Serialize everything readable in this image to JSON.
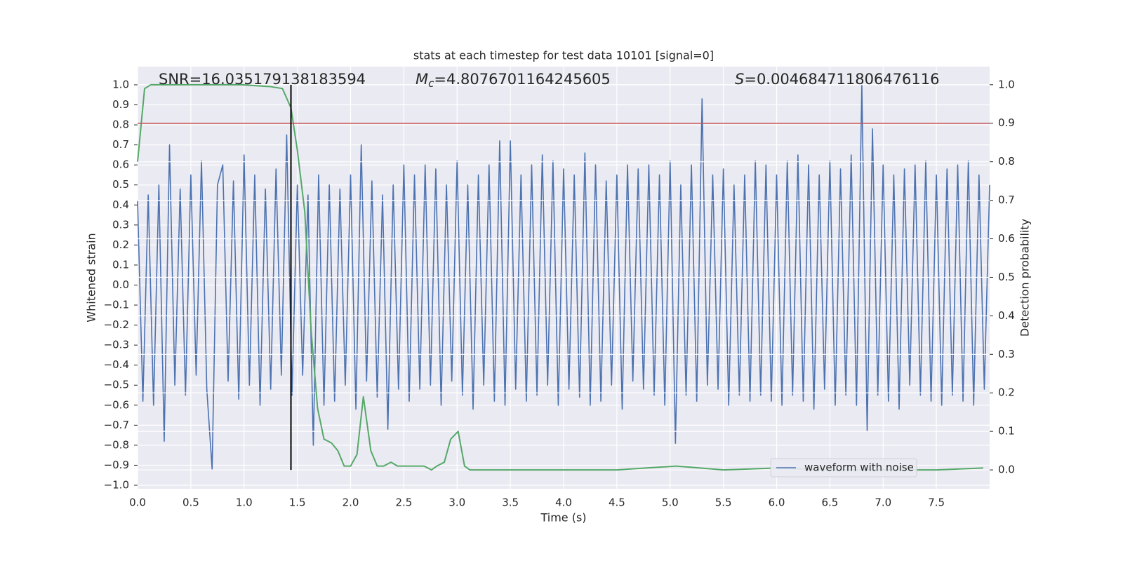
{
  "chart_data": {
    "type": "line",
    "title": "stats at each timestep for test data 10101 [signal=0]",
    "xlabel": "Time (s)",
    "ylabel": "Whitened strain",
    "y2label": "Detection probability",
    "xlim": [
      0,
      8.0
    ],
    "ylim": [
      -1.0175,
      1.091
    ],
    "y2lim": [
      -0.049,
      1.047
    ],
    "xticks": [
      {
        "value": 0,
        "label": "0.0"
      },
      0.5,
      {
        "value": 1,
        "label": "1.0"
      },
      1.5,
      {
        "value": 2,
        "label": "2.0"
      },
      2.5,
      {
        "value": 3,
        "label": "3.0"
      },
      3.5,
      {
        "value": 4,
        "label": "4.0"
      },
      4.5,
      {
        "value": 5,
        "label": "5.0"
      },
      5.5,
      {
        "value": 6,
        "label": "6.0"
      },
      6.5,
      {
        "value": 7,
        "label": "7.0"
      },
      7.5
    ],
    "yticks": [
      {
        "value": 1,
        "label": "1.0"
      },
      0.9,
      0.8,
      0.7,
      0.6,
      0.5,
      0.4,
      0.3,
      0.2,
      0.1,
      {
        "value": 0,
        "label": "0.0"
      },
      {
        "value": -0.1,
        "label": "−0.1"
      },
      {
        "value": -0.2,
        "label": "−0.2"
      },
      {
        "value": -0.3,
        "label": "−0.3"
      },
      {
        "value": -0.4,
        "label": "−0.4"
      },
      {
        "value": -0.5,
        "label": "−0.5"
      },
      {
        "value": -0.6,
        "label": "−0.6"
      },
      {
        "value": -0.7,
        "label": "−0.7"
      },
      {
        "value": -0.8,
        "label": "−0.8"
      },
      {
        "value": -0.9,
        "label": "−0.9"
      },
      {
        "value": -1,
        "label": "−1.0"
      }
    ],
    "y2ticks": [
      {
        "value": 0,
        "label": "0.0"
      },
      0.1,
      0.2,
      0.3,
      0.4,
      0.5,
      0.6,
      0.7,
      0.8,
      0.9,
      {
        "value": 1,
        "label": "1.0"
      }
    ],
    "grid": true,
    "legend_position": "lower right",
    "annotations": [
      {
        "symbol": "SNR",
        "text": "=16.035179138183594",
        "italic": false
      },
      {
        "symbol": "M",
        "subscript": "c",
        "text": "=4.8076701164245605",
        "italic": true
      },
      {
        "symbol": "S",
        "text": "=0.004684711806476116",
        "italic": true
      }
    ],
    "threshold": {
      "value": 0.9,
      "axis": "y2",
      "color": "#c44e52"
    },
    "marker_x": {
      "value": 1.44,
      "color": "#000000"
    },
    "series": [
      {
        "name": "waveform with noise",
        "color": "#4c72b0",
        "x": [
          0,
          0.05,
          0.1,
          0.15,
          0.2,
          0.25,
          0.3,
          0.35,
          0.4,
          0.45,
          0.5,
          0.55,
          0.6,
          0.65,
          0.7,
          0.75,
          0.8,
          0.85,
          0.9,
          0.95,
          1,
          1.05,
          1.1,
          1.15,
          1.2,
          1.25,
          1.3,
          1.35,
          1.4,
          1.45,
          1.5,
          1.55,
          1.6,
          1.65,
          1.7,
          1.75,
          1.8,
          1.85,
          1.9,
          1.95,
          2,
          2.05,
          2.1,
          2.15,
          2.2,
          2.25,
          2.3,
          2.35,
          2.4,
          2.45,
          2.5,
          2.55,
          2.6,
          2.65,
          2.7,
          2.75,
          2.8,
          2.85,
          2.9,
          2.95,
          3,
          3.05,
          3.1,
          3.15,
          3.2,
          3.25,
          3.3,
          3.35,
          3.4,
          3.45,
          3.5,
          3.55,
          3.6,
          3.65,
          3.7,
          3.75,
          3.8,
          3.85,
          3.9,
          3.95,
          4,
          4.05,
          4.1,
          4.15,
          4.2,
          4.25,
          4.3,
          4.35,
          4.4,
          4.45,
          4.5,
          4.55,
          4.6,
          4.65,
          4.7,
          4.75,
          4.8,
          4.85,
          4.9,
          4.95,
          5,
          5.05,
          5.1,
          5.15,
          5.2,
          5.25,
          5.3,
          5.35,
          5.4,
          5.45,
          5.5,
          5.55,
          5.6,
          5.65,
          5.7,
          5.75,
          5.8,
          5.85,
          5.9,
          5.95,
          6,
          6.05,
          6.1,
          6.15,
          6.2,
          6.25,
          6.3,
          6.35,
          6.4,
          6.45,
          6.5,
          6.55,
          6.6,
          6.65,
          6.7,
          6.75,
          6.8,
          6.85,
          6.9,
          6.95,
          7,
          7.05,
          7.1,
          7.15,
          7.2,
          7.25,
          7.3,
          7.35,
          7.4,
          7.45,
          7.5,
          7.55,
          7.6,
          7.65,
          7.7,
          7.75,
          7.8,
          7.85,
          7.9,
          7.95,
          8
        ],
        "values": [
          0.42,
          -0.58,
          0.45,
          -0.6,
          0.5,
          -0.78,
          0.7,
          -0.5,
          0.48,
          -0.55,
          0.55,
          -0.45,
          0.62,
          -0.52,
          -0.92,
          0.5,
          0.6,
          -0.48,
          0.52,
          -0.57,
          0.65,
          -0.5,
          0.55,
          -0.6,
          0.48,
          -0.52,
          0.58,
          -0.45,
          0.75,
          -0.55,
          0.5,
          -0.45,
          0.45,
          -0.8,
          0.55,
          -0.6,
          0.5,
          -0.58,
          0.48,
          -0.5,
          0.55,
          -0.62,
          0.7,
          -0.48,
          0.52,
          -0.56,
          0.45,
          -0.72,
          0.5,
          -0.52,
          0.6,
          -0.58,
          0.55,
          -0.52,
          0.6,
          -0.5,
          0.58,
          -0.6,
          0.5,
          -0.48,
          0.62,
          -0.55,
          0.5,
          -0.62,
          0.55,
          -0.5,
          0.6,
          -0.58,
          0.72,
          -0.6,
          0.72,
          -0.52,
          0.55,
          -0.58,
          0.6,
          -0.55,
          0.65,
          -0.5,
          0.62,
          -0.6,
          0.58,
          -0.52,
          0.55,
          -0.56,
          0.66,
          -0.6,
          0.6,
          -0.58,
          0.52,
          -0.5,
          0.55,
          -0.62,
          0.6,
          -0.48,
          0.58,
          -0.52,
          0.6,
          -0.55,
          0.55,
          -0.6,
          0.62,
          -0.79,
          0.5,
          -0.55,
          0.6,
          -0.58,
          0.93,
          -0.5,
          0.55,
          -0.52,
          0.58,
          -0.6,
          0.5,
          -0.55,
          0.55,
          -0.58,
          0.62,
          -0.55,
          0.6,
          -0.58,
          0.55,
          -0.6,
          0.62,
          -0.55,
          0.65,
          -0.58,
          0.6,
          -0.62,
          0.55,
          -0.52,
          0.62,
          -0.6,
          0.58,
          -0.55,
          0.65,
          -0.6,
          1.0,
          -0.73,
          0.78,
          -0.55,
          0.6,
          -0.58,
          0.55,
          -0.62,
          0.58,
          -0.5,
          0.6,
          -0.55,
          0.62,
          -0.58,
          0.55,
          -0.6,
          0.58,
          -0.55,
          0.6,
          -0.58,
          0.62,
          -0.6,
          0.55,
          -0.52,
          0.5
        ]
      },
      {
        "axis": "y2",
        "color": "#55a868",
        "x": [
          0,
          0.066,
          0.125,
          0.98,
          1.25,
          1.36,
          1.44,
          1.5,
          1.57,
          1.63,
          1.69,
          1.75,
          1.82,
          1.88,
          1.94,
          2.0,
          2.06,
          2.12,
          2.19,
          2.25,
          2.31,
          2.38,
          2.44,
          2.5,
          2.56,
          2.63,
          2.69,
          2.76,
          2.81,
          2.88,
          2.94,
          3.01,
          3.07,
          3.12,
          3.5,
          4.0,
          4.5,
          5.06,
          5.5,
          6.0,
          6.5,
          7.0,
          7.5,
          7.94
        ],
        "values": [
          0.8,
          0.99,
          1.0,
          1.0,
          0.995,
          0.99,
          0.94,
          0.83,
          0.67,
          0.36,
          0.16,
          0.08,
          0.07,
          0.05,
          0.01,
          0.01,
          0.04,
          0.19,
          0.05,
          0.01,
          0.01,
          0.02,
          0.01,
          0.01,
          0.01,
          0.01,
          0.01,
          0.0,
          0.01,
          0.02,
          0.08,
          0.1,
          0.01,
          0.0,
          0.0,
          0.0,
          0.0,
          0.01,
          0.0,
          0.005,
          0.0,
          0.0,
          0.0,
          0.005
        ]
      }
    ]
  }
}
